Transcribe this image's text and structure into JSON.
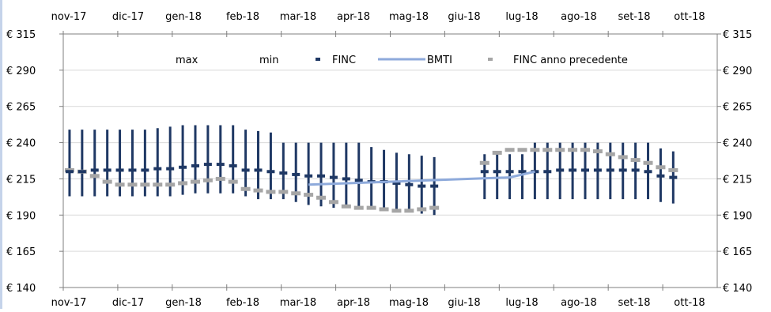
{
  "chart_data": {
    "type": "line",
    "title": "",
    "xlabel": "",
    "ylabel": "",
    "y_tick_prefix": "€ ",
    "ylim": [
      140,
      315
    ],
    "yticks": [
      140,
      165,
      190,
      215,
      240,
      265,
      290,
      315
    ],
    "months": [
      "nov-17",
      "dic-17",
      "gen-18",
      "feb-18",
      "mar-18",
      "apr-18",
      "mag-18",
      "giu-18",
      "lug-18",
      "ago-18",
      "set-18",
      "ott-18"
    ],
    "grid": true,
    "legend_position": "top",
    "legend": {
      "max_label": "max",
      "min_label": "min",
      "finc_label": "FINC",
      "bmti_label": "BMTI",
      "prev_label": "FINC anno precedente"
    },
    "colors": {
      "range": "#1f3864",
      "finc": "#1f3864",
      "bmti": "#8eaadb",
      "prev": "#a6a6a6",
      "grid": "#d9d9d9",
      "axis": "#7f7f7f"
    },
    "series": {
      "week_index": [
        0,
        1,
        2,
        3,
        4,
        5,
        6,
        7,
        8,
        9,
        10,
        11,
        12,
        13,
        14,
        15,
        16,
        17,
        18,
        19,
        20,
        21,
        22,
        23,
        24,
        25,
        26,
        27,
        28,
        29,
        33,
        34,
        35,
        36,
        37,
        38,
        39,
        40,
        41,
        42,
        43,
        44,
        45,
        46,
        47,
        48
      ],
      "max": [
        249,
        249,
        249,
        249,
        249,
        249,
        249,
        250,
        251,
        252,
        252,
        252,
        252,
        252,
        249,
        248,
        247,
        240,
        240,
        240,
        240,
        240,
        240,
        240,
        237,
        235,
        233,
        232,
        231,
        230,
        232,
        232,
        232,
        232,
        240,
        240,
        240,
        240,
        240,
        240,
        240,
        240,
        240,
        240,
        236,
        234
      ],
      "min": [
        203,
        203,
        203,
        203,
        203,
        203,
        203,
        203,
        203,
        204,
        205,
        205,
        205,
        205,
        203,
        201,
        201,
        201,
        199,
        197,
        196,
        195,
        195,
        195,
        194,
        193,
        192,
        192,
        191,
        190,
        201,
        201,
        201,
        201,
        201,
        201,
        201,
        201,
        201,
        201,
        201,
        201,
        201,
        201,
        199,
        198
      ],
      "finc": [
        220,
        220,
        221,
        221,
        221,
        221,
        221,
        222,
        222,
        223,
        224,
        225,
        225,
        224,
        221,
        221,
        220,
        219,
        218,
        217,
        217,
        216,
        215,
        214,
        213,
        213,
        212,
        211,
        210,
        210,
        220,
        220,
        220,
        220,
        220,
        220,
        221,
        221,
        221,
        221,
        221,
        221,
        221,
        220,
        217,
        216
      ],
      "prev": [
        221,
        220,
        217,
        213,
        211,
        211,
        211,
        211,
        211,
        212,
        213,
        214,
        215,
        213,
        208,
        207,
        206,
        206,
        205,
        204,
        202,
        199,
        196,
        195,
        195,
        194,
        193,
        193,
        194,
        195,
        226,
        233,
        235,
        235,
        235,
        235,
        235,
        235,
        235,
        234,
        232,
        230,
        228,
        226,
        223,
        221
      ]
    },
    "bmti": {
      "week_index": [
        19,
        35,
        37
      ],
      "values": [
        211,
        216,
        220
      ]
    }
  }
}
